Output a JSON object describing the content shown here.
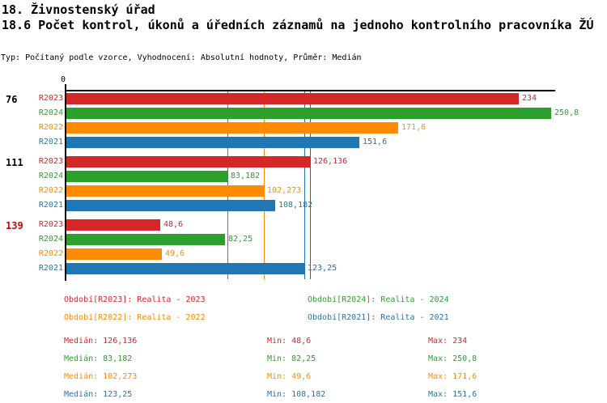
{
  "header": {
    "title": "18. Živnostenský úřad",
    "subtitle": "18.6 Počet kontrol, úkonů a úředních záznamů na jednoho kontrolního pracovníka ŽÚ",
    "meta": "Typ: Počítaný podle vzorce, Vyhodnocení: Absolutní hodnoty, Průměr: Medián"
  },
  "colors": {
    "R2023": "#d62728",
    "R2024": "#2ca02c",
    "R2022": "#ff8c00",
    "R2021": "#1f77b4",
    "axis": "#000000",
    "group_label_normal": "#000000",
    "group_label_alert": "#cc0000"
  },
  "chart_data": {
    "type": "bar",
    "orientation": "horizontal",
    "title": "18.6 Počet kontrol, úkonů a úředních záznamů na jednoho kontrolního pracovníka ŽÚ",
    "x_axis": {
      "origin_label": "0",
      "min": 0,
      "max": 252,
      "grid": false
    },
    "series_order": [
      "R2023",
      "R2024",
      "R2022",
      "R2021"
    ],
    "groups": [
      {
        "label": "76",
        "label_alert": false,
        "bars": [
          {
            "series": "R2023",
            "value": 234,
            "display": "234"
          },
          {
            "series": "R2024",
            "value": 250.8,
            "display": "250,8"
          },
          {
            "series": "R2022",
            "value": 171.6,
            "display": "171,6"
          },
          {
            "series": "R2021",
            "value": 151.6,
            "display": "151,6"
          }
        ]
      },
      {
        "label": "111",
        "label_alert": false,
        "bars": [
          {
            "series": "R2023",
            "value": 126.136,
            "display": "126,136"
          },
          {
            "series": "R2024",
            "value": 83.182,
            "display": "83,182"
          },
          {
            "series": "R2022",
            "value": 102.273,
            "display": "102,273"
          },
          {
            "series": "R2021",
            "value": 108.182,
            "display": "108,182"
          }
        ]
      },
      {
        "label": "139",
        "label_alert": true,
        "bars": [
          {
            "series": "R2023",
            "value": 48.6,
            "display": "48,6"
          },
          {
            "series": "R2024",
            "value": 82.25,
            "display": "82,25"
          },
          {
            "series": "R2022",
            "value": 49.6,
            "display": "49,6"
          },
          {
            "series": "R2021",
            "value": 123.25,
            "display": "123,25"
          }
        ]
      }
    ],
    "median_lines": [
      {
        "series": "R2023",
        "value": 126.136
      },
      {
        "series": "R2024",
        "value": 83.182
      },
      {
        "series": "R2022",
        "value": 102.273
      },
      {
        "series": "R2021",
        "value": 123.25
      }
    ]
  },
  "legend": {
    "items": [
      {
        "series": "R2023",
        "text": "Období[R2023]: Realita - 2023"
      },
      {
        "series": "R2024",
        "text": "Období[R2024]: Realita - 2024"
      },
      {
        "series": "R2022",
        "text": "Období[R2022]: Realita - 2022"
      },
      {
        "series": "R2021",
        "text": "Období[R2021]: Realita - 2021"
      }
    ]
  },
  "stats": {
    "rows": [
      {
        "series": "R2023",
        "median": "Medián: 126,136",
        "min": "Min: 48,6",
        "max": "Max: 234"
      },
      {
        "series": "R2024",
        "median": "Medián: 83,182",
        "min": "Min: 82,25",
        "max": "Max: 250,8"
      },
      {
        "series": "R2022",
        "median": "Medián: 102,273",
        "min": "Min: 49,6",
        "max": "Max: 171,6"
      },
      {
        "series": "R2021",
        "median": "Medián: 123,25",
        "min": "Min: 108,182",
        "max": "Max: 151,6"
      }
    ]
  }
}
